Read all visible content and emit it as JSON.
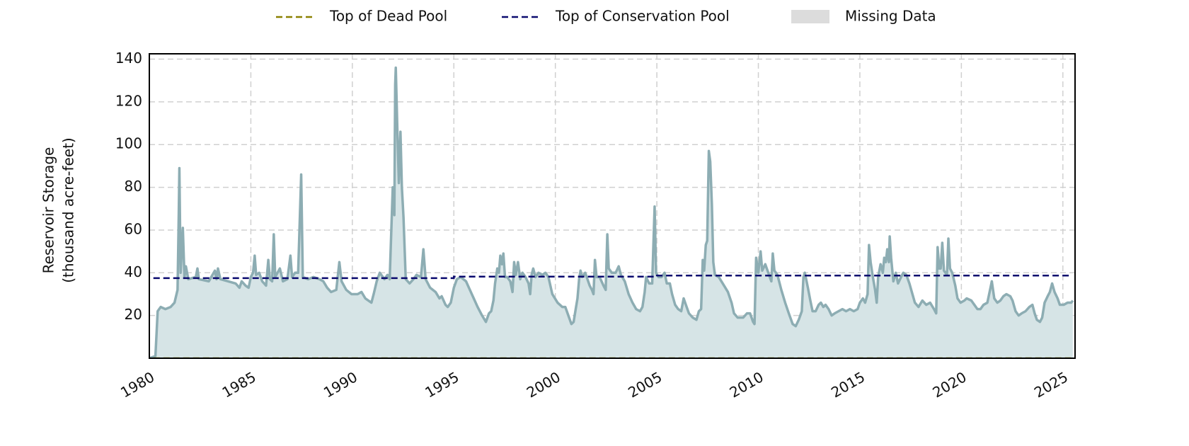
{
  "chart_data": {
    "type": "area",
    "y_label": [
      "Reservoir Storage",
      "(thousand acre-feet)"
    ],
    "xlim": [
      1980,
      2025.6
    ],
    "xticks": [
      1980,
      1985,
      1990,
      1995,
      2000,
      2005,
      2010,
      2015,
      2020,
      2025
    ],
    "ylim": [
      0,
      142.5
    ],
    "yticks": [
      20,
      40,
      60,
      80,
      100,
      120,
      140
    ],
    "grid": true,
    "storage": {
      "color": "#8dadb3",
      "fill": "#d6e4e6",
      "x": [
        1980.0,
        1980.3,
        1980.41,
        1980.56,
        1980.79,
        1981.05,
        1981.24,
        1981.39,
        1981.45,
        1981.48,
        1981.54,
        1981.65,
        1981.73,
        1981.8,
        1981.92,
        1982.29,
        1982.37,
        1982.44,
        1982.93,
        1983.23,
        1983.31,
        1983.38,
        1983.5,
        1983.87,
        1984.25,
        1984.44,
        1984.55,
        1984.74,
        1984.89,
        1985.0,
        1985.11,
        1985.19,
        1985.26,
        1985.41,
        1985.56,
        1985.75,
        1985.86,
        1985.94,
        1986.05,
        1986.13,
        1986.2,
        1986.43,
        1986.58,
        1986.8,
        1986.95,
        1987.03,
        1987.18,
        1987.33,
        1987.48,
        1987.56,
        1987.82,
        1988.08,
        1988.38,
        1988.57,
        1988.76,
        1988.95,
        1989.21,
        1989.36,
        1989.47,
        1989.7,
        1989.96,
        1990.26,
        1990.45,
        1990.64,
        1990.94,
        1991.05,
        1991.2,
        1991.35,
        1991.58,
        1991.73,
        1991.84,
        1991.99,
        1992.07,
        1992.11,
        1992.14,
        1992.22,
        1992.29,
        1992.37,
        1992.44,
        1992.52,
        1992.63,
        1992.82,
        1993.01,
        1993.16,
        1993.38,
        1993.5,
        1993.61,
        1993.83,
        1994.1,
        1994.29,
        1994.4,
        1994.59,
        1994.7,
        1994.85,
        1995.0,
        1995.15,
        1995.34,
        1995.6,
        1995.79,
        1995.98,
        1996.17,
        1996.39,
        1996.58,
        1996.73,
        1996.84,
        1996.95,
        1997.03,
        1997.14,
        1997.22,
        1997.29,
        1997.37,
        1997.44,
        1997.52,
        1997.63,
        1997.78,
        1997.89,
        1997.97,
        1998.05,
        1998.16,
        1998.27,
        1998.38,
        1998.53,
        1998.68,
        1998.76,
        1998.83,
        1998.91,
        1999.02,
        1999.17,
        1999.36,
        1999.51,
        1999.66,
        1999.85,
        2000.11,
        2000.34,
        2000.49,
        2000.64,
        2000.79,
        2000.9,
        2001.02,
        2001.09,
        2001.17,
        2001.24,
        2001.32,
        2001.47,
        2001.58,
        2001.69,
        2001.8,
        2001.88,
        2001.95,
        2002.03,
        2002.18,
        2002.37,
        2002.48,
        2002.56,
        2002.63,
        2002.78,
        2002.97,
        2003.12,
        2003.23,
        2003.42,
        2003.61,
        2003.8,
        2003.98,
        2004.17,
        2004.29,
        2004.4,
        2004.47,
        2004.62,
        2004.77,
        2004.89,
        2004.96,
        2005.08,
        2005.23,
        2005.38,
        2005.49,
        2005.64,
        2005.75,
        2005.9,
        2006.05,
        2006.2,
        2006.32,
        2006.43,
        2006.58,
        2006.77,
        2006.95,
        2007.07,
        2007.18,
        2007.26,
        2007.33,
        2007.41,
        2007.48,
        2007.56,
        2007.63,
        2007.71,
        2007.78,
        2007.86,
        2008.05,
        2008.31,
        2008.5,
        2008.68,
        2008.8,
        2008.98,
        2009.25,
        2009.44,
        2009.59,
        2009.74,
        2009.81,
        2009.89,
        2010.0,
        2010.11,
        2010.19,
        2010.34,
        2010.49,
        2010.64,
        2010.71,
        2010.79,
        2010.94,
        2011.13,
        2011.32,
        2011.5,
        2011.69,
        2011.84,
        2011.99,
        2012.14,
        2012.22,
        2012.29,
        2012.44,
        2012.56,
        2012.67,
        2012.82,
        2012.97,
        2013.08,
        2013.2,
        2013.31,
        2013.46,
        2013.61,
        2013.76,
        2013.95,
        2014.14,
        2014.32,
        2014.51,
        2014.7,
        2014.89,
        2015.0,
        2015.15,
        2015.26,
        2015.38,
        2015.45,
        2015.53,
        2015.64,
        2015.75,
        2015.83,
        2015.9,
        2016.02,
        2016.13,
        2016.2,
        2016.28,
        2016.35,
        2016.43,
        2016.47,
        2016.54,
        2016.65,
        2016.77,
        2016.88,
        2017.03,
        2017.14,
        2017.29,
        2017.44,
        2017.59,
        2017.71,
        2017.89,
        2018.08,
        2018.27,
        2018.46,
        2018.65,
        2018.76,
        2018.83,
        2018.91,
        2018.98,
        2019.06,
        2019.14,
        2019.29,
        2019.36,
        2019.44,
        2019.55,
        2019.7,
        2019.81,
        2019.96,
        2020.15,
        2020.26,
        2020.49,
        2020.64,
        2020.79,
        2020.94,
        2021.09,
        2021.28,
        2021.39,
        2021.5,
        2021.62,
        2021.77,
        2021.92,
        2022.07,
        2022.22,
        2022.41,
        2022.52,
        2022.67,
        2022.82,
        2022.97,
        2023.16,
        2023.35,
        2023.5,
        2023.61,
        2023.72,
        2023.87,
        2023.98,
        2024.1,
        2024.25,
        2024.36,
        2024.47,
        2024.59,
        2024.74,
        2024.85,
        2025.04,
        2025.23,
        2025.41,
        2025.49
      ],
      "values": [
        0,
        1,
        22,
        24,
        23,
        24,
        26,
        32,
        68,
        89,
        40,
        61,
        38,
        43,
        37,
        38,
        42,
        37,
        36,
        41,
        37,
        42,
        37,
        36,
        35,
        33,
        36,
        34,
        33,
        38,
        40,
        48,
        39,
        40,
        36,
        34,
        46,
        37,
        36,
        58,
        38,
        42,
        36,
        37,
        48,
        38,
        40,
        40,
        86,
        38,
        37,
        38,
        37,
        36,
        33,
        31,
        32,
        45,
        36,
        32,
        30,
        30,
        31,
        28,
        26,
        30,
        36,
        40,
        37,
        39,
        37,
        80,
        67,
        128,
        136,
        106,
        82,
        106,
        80,
        66,
        37,
        35,
        37,
        39,
        38,
        51,
        37,
        33,
        31,
        28,
        29,
        25,
        24,
        26,
        33,
        37,
        38,
        36,
        32,
        28,
        24,
        20,
        17,
        21,
        22,
        27,
        35,
        42,
        40,
        48,
        44,
        49,
        38,
        38,
        36,
        31,
        45,
        39,
        45,
        37,
        40,
        38,
        35,
        30,
        39,
        42,
        38,
        40,
        39,
        40,
        38,
        30,
        26,
        24,
        24,
        20,
        16,
        17,
        24,
        28,
        37,
        41,
        38,
        40,
        37,
        34,
        32,
        30,
        46,
        38,
        38,
        34,
        32,
        58,
        42,
        40,
        40,
        43,
        39,
        36,
        30,
        26,
        23,
        22,
        24,
        31,
        38,
        35,
        35,
        71,
        40,
        38,
        38,
        40,
        35,
        35,
        30,
        25,
        23,
        22,
        28,
        25,
        21,
        19,
        18,
        22,
        23,
        46,
        41,
        53,
        55,
        97,
        92,
        72,
        45,
        39,
        38,
        34,
        31,
        26,
        21,
        19,
        19,
        21,
        21,
        17,
        16,
        47,
        40,
        50,
        41,
        44,
        40,
        36,
        49,
        41,
        39,
        32,
        26,
        21,
        16,
        15,
        18,
        22,
        38,
        40,
        33,
        27,
        22,
        22,
        25,
        26,
        24,
        25,
        23,
        20,
        21,
        22,
        23,
        22,
        23,
        22,
        23,
        26,
        28,
        26,
        30,
        53,
        45,
        38,
        32,
        26,
        38,
        44,
        40,
        47,
        45,
        51,
        45,
        57,
        47,
        36,
        40,
        35,
        38,
        40,
        39,
        35,
        30,
        26,
        24,
        27,
        25,
        26,
        23,
        21,
        52,
        42,
        42,
        54,
        41,
        39,
        56,
        42,
        40,
        34,
        28,
        26,
        27,
        28,
        27,
        25,
        23,
        23,
        25,
        26,
        31,
        36,
        28,
        26,
        27,
        29,
        30,
        29,
        27,
        22,
        20,
        21,
        22,
        24,
        25,
        21,
        18,
        17,
        19,
        26,
        29,
        31,
        35,
        31,
        28,
        25,
        25,
        26,
        26,
        27
      ]
    },
    "reference_lines": [
      {
        "name": "Top of Dead Pool",
        "color": "#8b8000",
        "x": [
          1980.2,
          2025.4
        ],
        "values": [
          0,
          0
        ]
      },
      {
        "name": "Top of Conservation Pool",
        "color": "#0a0a6e",
        "x": [
          1980.2,
          1995,
          1995,
          2005,
          2005,
          2025.4
        ],
        "values": [
          37.5,
          37.5,
          38.2,
          38.2,
          38.7,
          38.7
        ]
      }
    ],
    "missing_data": {
      "name": "Missing Data",
      "color": "#dcdcdc"
    }
  }
}
